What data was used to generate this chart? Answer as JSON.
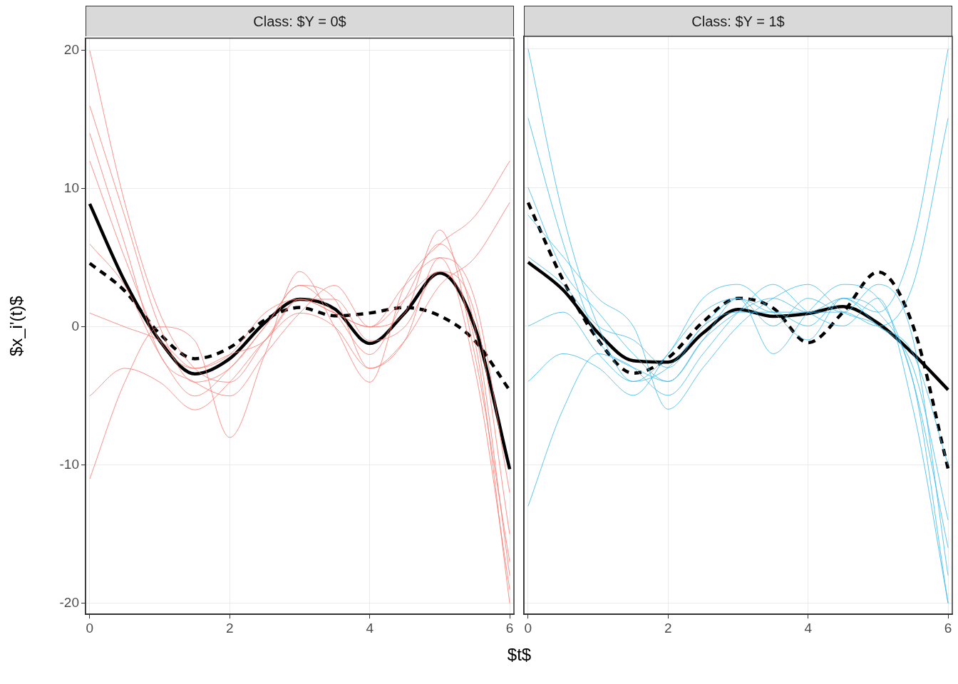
{
  "chart_data": [
    {
      "type": "line",
      "title": "Class: $Y = 0$",
      "ylabel": "$x_i'(t)$",
      "xlabel": "$t$",
      "x": [
        0,
        0.5,
        1,
        1.5,
        2,
        2.5,
        3,
        3.5,
        4,
        4.5,
        5,
        5.5,
        6
      ],
      "xlim": [
        -0.06,
        6.06
      ],
      "xticks": [
        0,
        2,
        4,
        6
      ],
      "ylim": [
        -20.8,
        20.9
      ],
      "yticks": [
        -20,
        -10,
        0,
        10,
        20
      ],
      "grid": true,
      "legend": false,
      "marker": "none",
      "series": [
        {
          "color": "#f8766d",
          "values": [
            16,
            8,
            0,
            -4,
            -3,
            0,
            3,
            1,
            -2,
            2,
            6,
            0,
            -18
          ]
        },
        {
          "color": "#f8766d",
          "values": [
            12,
            5,
            -1,
            -3,
            -2,
            1,
            2,
            1,
            0,
            3,
            5,
            -3,
            -19
          ]
        },
        {
          "color": "#f8766d",
          "values": [
            -5,
            -3,
            -4,
            -6,
            -4,
            -1,
            1,
            0,
            -3,
            -1,
            3,
            5,
            9
          ]
        },
        {
          "color": "#f8766d",
          "values": [
            20,
            9,
            1,
            -3,
            -4,
            -1,
            2,
            2,
            -1,
            0,
            4,
            1,
            -15
          ]
        },
        {
          "color": "#f8766d",
          "values": [
            6,
            3,
            -2,
            -5,
            -3,
            0,
            3,
            2,
            -3,
            -1,
            5,
            2,
            -12
          ]
        },
        {
          "color": "#f8766d",
          "values": [
            -11,
            -4,
            0,
            -1,
            -8,
            -2,
            4,
            0,
            -4,
            3,
            6,
            8,
            12
          ]
        },
        {
          "color": "#f8766d",
          "values": [
            1,
            0,
            -1,
            -3,
            -2,
            -1,
            2,
            1,
            0,
            2,
            4,
            -1,
            -20
          ]
        },
        {
          "color": "#f8766d",
          "values": [
            14,
            6,
            -2,
            -4,
            -5,
            -2,
            1,
            3,
            0,
            1,
            7,
            -2,
            -17
          ]
        },
        {
          "color": "#000000",
          "line_style": "solid",
          "values": [
            8.9,
            3.3,
            -1.0,
            -3.4,
            -2.3,
            0.3,
            2.0,
            1.3,
            -1.2,
            1.0,
            3.9,
            0,
            -10.3
          ]
        },
        {
          "color": "#000000",
          "line_style": "dashed",
          "values": [
            4.6,
            2.6,
            -0.5,
            -2.3,
            -1.5,
            0.5,
            1.4,
            0.8,
            1.0,
            1.4,
            0.8,
            -1.0,
            -4.6
          ]
        }
      ]
    },
    {
      "type": "line",
      "title": "Class: $Y = 1$",
      "x": [
        0,
        0.5,
        1,
        1.5,
        2,
        2.5,
        3,
        3.5,
        4,
        4.5,
        5,
        5.5,
        6
      ],
      "xlim": [
        -0.06,
        6.06
      ],
      "xticks": [
        0,
        2,
        4,
        6
      ],
      "ylim": [
        -20.8,
        20.9
      ],
      "yticks": [
        -20,
        -10,
        0,
        10,
        20
      ],
      "tick_labels": "x",
      "grid": true,
      "legend": false,
      "marker": "none",
      "series": [
        {
          "color": "#35b7e8",
          "values": [
            20,
            8,
            0,
            -4,
            -3,
            0,
            2,
            1,
            1,
            2,
            1,
            -4,
            -20
          ]
        },
        {
          "color": "#35b7e8",
          "values": [
            -13,
            -6,
            -2,
            -3,
            -4,
            -1,
            1,
            2,
            1,
            1,
            0,
            3,
            15
          ]
        },
        {
          "color": "#35b7e8",
          "values": [
            10,
            4,
            1,
            -2,
            -4,
            -1,
            2,
            0,
            2,
            1,
            3,
            -1,
            -18
          ]
        },
        {
          "color": "#35b7e8",
          "values": [
            5,
            3,
            0,
            -1,
            -3,
            0,
            1,
            1,
            0,
            2,
            1,
            6,
            20
          ]
        },
        {
          "color": "#35b7e8",
          "values": [
            -4,
            -2,
            -3,
            -5,
            -2,
            1,
            2,
            -2,
            1,
            3,
            2,
            -4,
            -16
          ]
        },
        {
          "color": "#35b7e8",
          "values": [
            15,
            6,
            -1,
            -3,
            -5,
            -2,
            1,
            3,
            1,
            0,
            2,
            -6,
            -20
          ]
        },
        {
          "color": "#35b7e8",
          "values": [
            0,
            1,
            -2,
            -4,
            -2,
            2,
            3,
            1,
            -1,
            2,
            0,
            -2,
            -10
          ]
        },
        {
          "color": "#35b7e8",
          "values": [
            8,
            5,
            2,
            0,
            -6,
            -3,
            0,
            2,
            3,
            1,
            0,
            -3,
            -14
          ]
        },
        {
          "color": "#000000",
          "line_style": "solid",
          "values": [
            4.6,
            2.6,
            -0.5,
            -2.5,
            -2.6,
            -0.5,
            1.2,
            0.7,
            0.9,
            1.4,
            0.2,
            -2.0,
            -4.6
          ]
        },
        {
          "color": "#000000",
          "line_style": "dashed",
          "values": [
            8.9,
            3.3,
            -1.0,
            -3.4,
            -2.3,
            0.3,
            2.0,
            1.3,
            -1.2,
            1.0,
            3.9,
            0,
            -10.3
          ]
        }
      ]
    }
  ]
}
